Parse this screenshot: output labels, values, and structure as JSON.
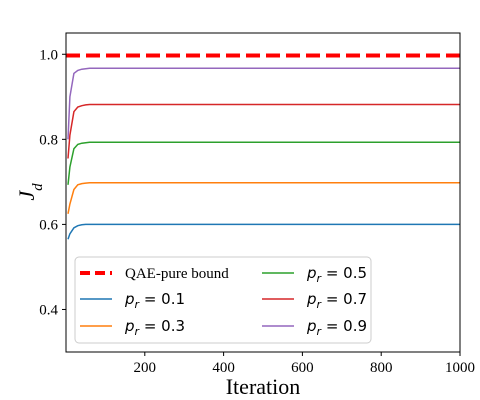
{
  "chart_data": {
    "type": "line",
    "xlabel": "Iteration",
    "ylabel": "J_d",
    "xlim": [
      0,
      1000
    ],
    "ylim": [
      0.3,
      1.05
    ],
    "x_ticks": [
      200,
      400,
      600,
      800,
      1000
    ],
    "x_tick_labels": [
      "200",
      "400",
      "600",
      "800",
      "1000"
    ],
    "y_ticks": [
      0.4,
      0.6,
      0.8,
      1.0
    ],
    "y_tick_labels": [
      "0.4",
      "0.6",
      "0.8",
      "1.0"
    ],
    "grid": false,
    "legend_position": "lower-left",
    "legend_columns": 2,
    "reference_line": {
      "name": "QAE-pure bound",
      "y": 0.997,
      "color": "#ff0000",
      "style": "dashed"
    },
    "series": [
      {
        "name": "p_r = 0.1",
        "color": "#1f77b4",
        "x": [
          5,
          10,
          20,
          30,
          40,
          50,
          60,
          80,
          100,
          200,
          400,
          600,
          800,
          1000
        ],
        "values": [
          0.565,
          0.578,
          0.592,
          0.597,
          0.599,
          0.6,
          0.6,
          0.6,
          0.6,
          0.6,
          0.6,
          0.6,
          0.6,
          0.6
        ]
      },
      {
        "name": "p_r = 0.3",
        "color": "#ff7f0e",
        "x": [
          5,
          10,
          20,
          30,
          40,
          50,
          60,
          80,
          100,
          200,
          400,
          600,
          800,
          1000
        ],
        "values": [
          0.625,
          0.648,
          0.682,
          0.693,
          0.696,
          0.697,
          0.698,
          0.698,
          0.698,
          0.698,
          0.698,
          0.698,
          0.698,
          0.698
        ]
      },
      {
        "name": "p_r = 0.5",
        "color": "#2ca02c",
        "x": [
          5,
          10,
          20,
          30,
          40,
          50,
          60,
          80,
          100,
          200,
          400,
          600,
          800,
          1000
        ],
        "values": [
          0.693,
          0.735,
          0.778,
          0.788,
          0.791,
          0.792,
          0.793,
          0.793,
          0.793,
          0.793,
          0.793,
          0.793,
          0.793,
          0.793
        ]
      },
      {
        "name": "p_r = 0.7",
        "color": "#d62728",
        "x": [
          5,
          10,
          20,
          30,
          40,
          50,
          60,
          80,
          100,
          200,
          400,
          600,
          800,
          1000
        ],
        "values": [
          0.755,
          0.81,
          0.865,
          0.876,
          0.879,
          0.881,
          0.882,
          0.882,
          0.882,
          0.882,
          0.882,
          0.882,
          0.882,
          0.882
        ]
      },
      {
        "name": "p_r = 0.9",
        "color": "#9467bd",
        "x": [
          5,
          10,
          20,
          30,
          40,
          50,
          60,
          80,
          100,
          200,
          400,
          600,
          800,
          1000
        ],
        "values": [
          0.8,
          0.9,
          0.955,
          0.962,
          0.965,
          0.966,
          0.967,
          0.967,
          0.967,
          0.967,
          0.967,
          0.967,
          0.967,
          0.967
        ]
      }
    ]
  }
}
